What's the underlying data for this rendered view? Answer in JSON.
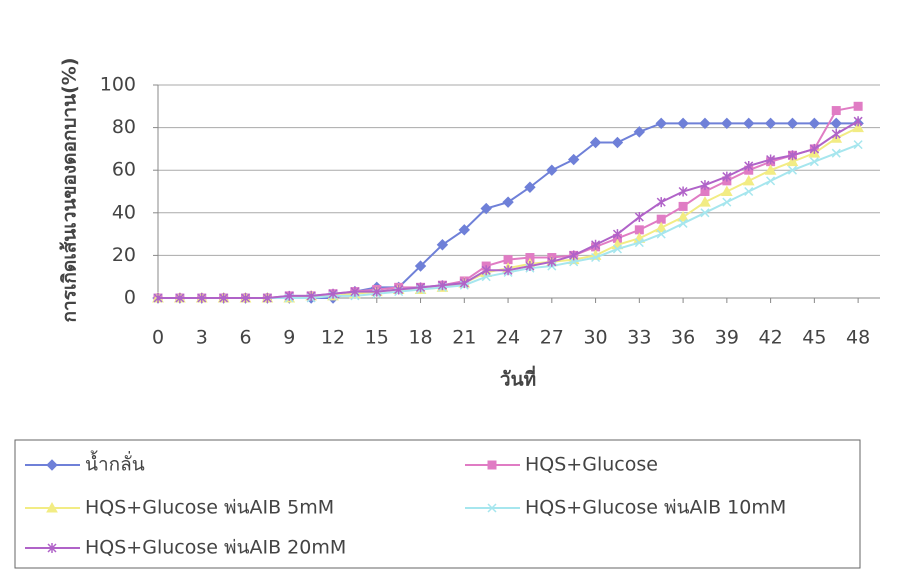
{
  "chart_data": {
    "type": "line",
    "y_label": "การเกิดเส้นเวนของดอกบาน(%)",
    "x_label": "วันที่",
    "x": [
      0,
      1.5,
      3,
      4.5,
      6,
      7.5,
      9,
      10.5,
      12,
      13.5,
      15,
      16.5,
      18,
      19.5,
      21,
      22.5,
      24,
      25.5,
      27,
      28.5,
      30,
      31.5,
      33,
      34.5,
      36,
      37.5,
      39,
      40.5,
      42,
      43.5,
      45,
      46.5,
      48
    ],
    "series": [
      {
        "name": "น้ำกลั่น",
        "color": "#6f80d8",
        "marker": "diamond",
        "values": [
          0,
          0,
          0,
          0,
          0,
          0,
          0,
          0,
          0,
          3,
          5,
          5,
          15,
          25,
          32,
          42,
          45,
          52,
          60,
          65,
          73,
          73,
          78,
          82,
          82,
          82,
          82,
          82,
          82,
          82,
          82,
          82,
          82
        ]
      },
      {
        "name": "HQS+Glucose",
        "color": "#e07cc4",
        "marker": "square",
        "values": [
          0,
          0,
          0,
          0,
          0,
          0,
          1,
          1,
          2,
          3,
          4,
          5,
          5,
          6,
          8,
          15,
          18,
          19,
          19,
          20,
          24,
          28,
          32,
          37,
          43,
          50,
          55,
          60,
          64,
          67,
          70,
          88,
          90
        ]
      },
      {
        "name": "HQS+Glucose พ่นAIB 5mM",
        "color": "#f2ec84",
        "marker": "triangle",
        "values": [
          0,
          0,
          0,
          0,
          0,
          0,
          0,
          1,
          1,
          2,
          3,
          4,
          4,
          5,
          7,
          12,
          14,
          16,
          17,
          18,
          20,
          25,
          28,
          33,
          38,
          45,
          50,
          55,
          60,
          64,
          68,
          75,
          80
        ]
      },
      {
        "name": "HQS+Glucose พ่นAIB 10mM",
        "color": "#a6e6ee",
        "marker": "cross",
        "values": [
          0,
          0,
          0,
          0,
          0,
          0,
          0,
          0,
          1,
          1,
          2,
          3,
          4,
          5,
          6,
          10,
          12,
          14,
          15,
          17,
          19,
          23,
          26,
          30,
          35,
          40,
          45,
          50,
          55,
          60,
          64,
          68,
          72
        ]
      },
      {
        "name": "HQS+Glucose พ่นAIB 20mM",
        "color": "#b063c8",
        "marker": "star",
        "values": [
          0,
          0,
          0,
          0,
          0,
          0,
          1,
          1,
          2,
          3,
          3,
          4,
          5,
          6,
          7,
          13,
          13,
          15,
          17,
          20,
          25,
          30,
          38,
          45,
          50,
          53,
          57,
          62,
          65,
          67,
          70,
          77,
          83
        ]
      }
    ],
    "xlim": [
      0,
      49.5
    ],
    "xticks": [
      0,
      3,
      6,
      9,
      12,
      15,
      18,
      21,
      24,
      27,
      30,
      33,
      36,
      39,
      42,
      45,
      48
    ],
    "ylim": [
      0,
      100
    ],
    "yticks": [
      0,
      20,
      40,
      60,
      80,
      100
    ],
    "grid": true
  }
}
